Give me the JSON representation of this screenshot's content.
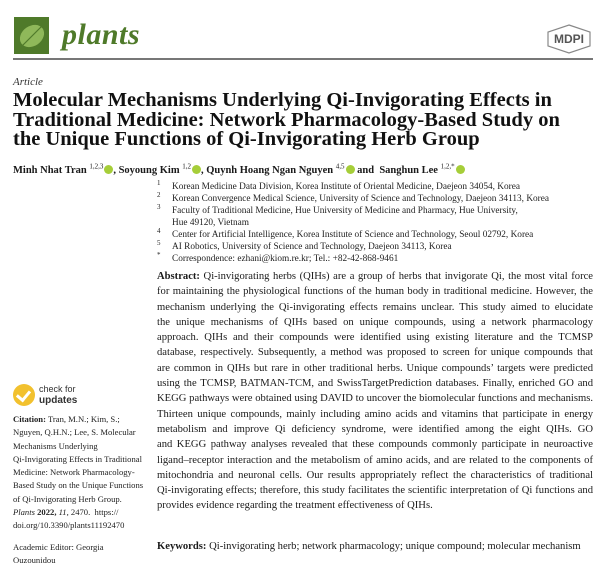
{
  "header": {
    "journal": "plants",
    "publisher_logo": "MDPI",
    "brand_color": "#4f7a2a"
  },
  "article_type": "Article",
  "title_lines": [
    "Molecular Mechanisms Underlying Qi-Invigorating Effects in",
    "Traditional Medicine: Network Pharmacology-Based Study on",
    "the Unique Functions of Qi-Invigorating Herb Group"
  ],
  "authors": [
    {
      "name": "Minh Nhat Tran",
      "sup": "1,2,3",
      "sep": ", "
    },
    {
      "name": "Soyoung Kim",
      "sup": "1,2",
      "sep": ", "
    },
    {
      "name": "Quynh Hoang Ngan Nguyen",
      "sup": "4,5",
      "sep": " and "
    },
    {
      "name": "Sanghun Lee",
      "sup": "1,2,*",
      "sep": ""
    }
  ],
  "affiliations": [
    {
      "n": "1",
      "text": "Korean Medicine Data Division, Korea Institute of Oriental Medicine, Daejeon 34054, Korea"
    },
    {
      "n": "2",
      "text": "Korean Convergence Medical Science, University of Science and Technology, Daejeon 34113, Korea"
    },
    {
      "n": "3",
      "text": "Faculty of Traditional Medicine, Hue University of Medicine and Pharmacy, Hue University,"
    },
    {
      "n": "",
      "text": "Hue 49120, Vietnam"
    },
    {
      "n": "4",
      "text": "Center for Artificial Intelligence, Korea Institute of Science and Technology, Seoul 02792, Korea"
    },
    {
      "n": "5",
      "text": "AI Robotics, University of Science and Technology, Daejeon 34113, Korea"
    },
    {
      "n": "*",
      "text": "Correspondence: ezhani@kiom.re.kr; Tel.: +82-42-868-9461"
    }
  ],
  "abstract": {
    "label": "Abstract:",
    "lines": [
      "Qi-invigorating herbs (QIHs) are a group of herbs that invigorate Qi, the most vital force",
      "for maintaining the physiological functions of the human body in traditional medicine. However, the",
      "mechanism underlying the Qi-invigorating effects remains unclear. This study aimed to elucidate",
      "the unique mechanisms of QIHs based on unique compounds, using a network pharmacology",
      "approach. QIHs and their compounds were identified using existing literature and the TCMSP",
      "database, respectively. Subsequently, a method was proposed to screen for unique compounds that",
      "are common in QIHs but rare in other traditional herbs. Unique compounds’ targets were predicted",
      "using the TCMSP, BATMAN-TCM, and SwissTargetPrediction databases. Finally, enriched GO and",
      "KEGG pathways were obtained using DAVID to uncover the biomolecular functions and mechanisms.",
      "Thirteen unique compounds, mainly including amino acids and vitamins that participate in energy",
      "metabolism and improve Qi deficiency syndrome, were identified among the eight QIHs. GO",
      "and KEGG pathway analyses revealed that these compounds commonly participate in neuroactive",
      "ligand–receptor interaction and the metabolism of amino acids, and are related to the components of",
      "mitochondria and neuronal cells. Our results appropriately reflect the characteristics of traditional",
      "Qi-invigorating effects; therefore, this study facilitates the scientific interpretation of Qi functions and",
      "provides evidence regarding the treatment effectiveness of QIHs."
    ]
  },
  "keywords": {
    "label": "Keywords:",
    "text": "Qi-invigorating herb; network pharmacology; unique compound; molecular mechanism"
  },
  "check_updates": {
    "line1": "check for",
    "line2": "updates"
  },
  "citation": {
    "label": "Citation:",
    "lines": [
      "Tran, M.N.; Kim, S.;",
      "Nguyen, Q.H.N.; Lee, S. Molecular",
      "Mechanisms Underlying",
      "Qi-Invigorating Effects in Traditional",
      "Medicine: Network Pharmacology-",
      "Based Study on the Unique Functions",
      "of Qi-Invigorating Herb Group."
    ],
    "journal": "Plants",
    "year": "2022,",
    "volume": "11,",
    "rest": "2470.  https://",
    "doi": "doi.org/10.3390/plants11192470"
  },
  "editor": {
    "line1": "Academic Editor: Georgia",
    "line2": "Ouzounidou"
  }
}
